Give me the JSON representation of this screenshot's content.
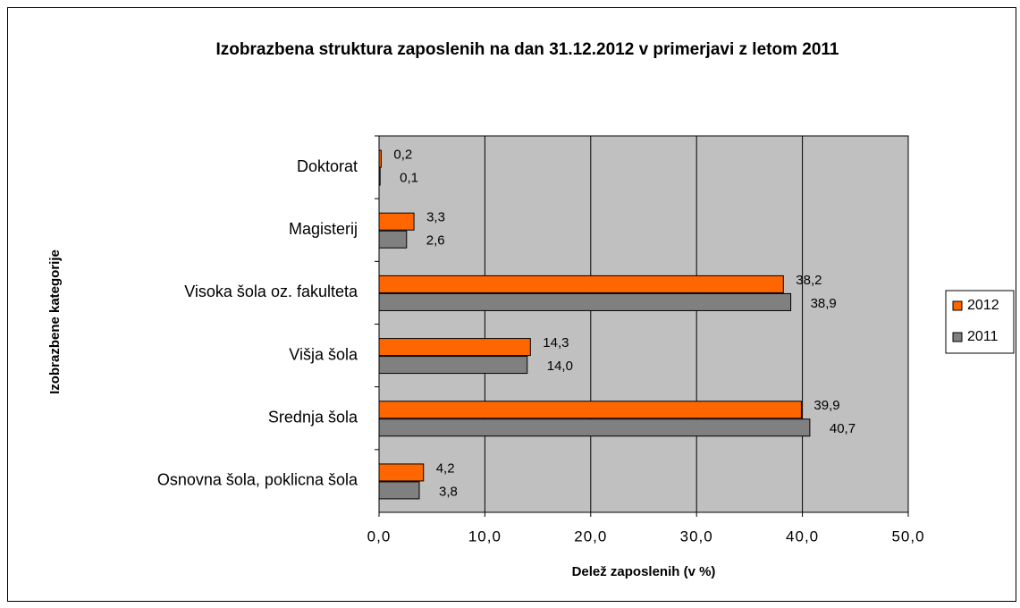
{
  "chart_data": {
    "type": "barh",
    "title": "Izobrazbena struktura zaposlenih na dan 31.12.2012 v primerjavi z letom 2011",
    "x_label": "Delež zaposlenih (v %)",
    "y_label": "Izobrazbene kategorije",
    "categories": [
      "Doktorat",
      "Magisterij",
      "Visoka šola oz. fakulteta",
      "Višja šola",
      "Srednja šola",
      "Osnovna šola, poklicna šola"
    ],
    "series": [
      {
        "name": "2012",
        "color": "#ff6600",
        "values": [
          0.2,
          3.3,
          38.2,
          14.3,
          39.9,
          4.2
        ],
        "value_labels": [
          "0,2",
          "3,3",
          "38,2",
          "14,3",
          "39,9",
          "4,2"
        ]
      },
      {
        "name": "2011",
        "color": "#808080",
        "values": [
          0.1,
          2.6,
          38.9,
          14.0,
          40.7,
          3.8
        ],
        "value_labels": [
          "0,1",
          "2,6",
          "38,9",
          "14,0",
          "40,7",
          "3,8"
        ]
      }
    ],
    "xlim": [
      0,
      50
    ],
    "xticks": [
      {
        "value": 0,
        "label": "0,0"
      },
      {
        "value": 10,
        "label": "10,0"
      },
      {
        "value": 20,
        "label": "20,0"
      },
      {
        "value": 30,
        "label": "30,0"
      },
      {
        "value": 40,
        "label": "40,0"
      },
      {
        "value": 50,
        "label": "50,0"
      }
    ],
    "grid": true,
    "legend": "right"
  }
}
